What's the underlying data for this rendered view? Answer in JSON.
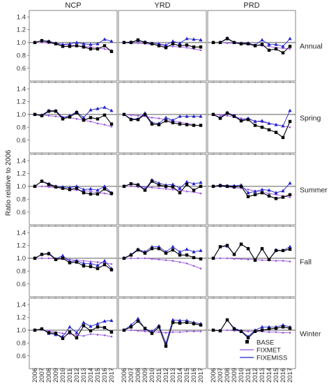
{
  "chart_data": {
    "type": "line",
    "ylabel": "Ratio relative to 2006",
    "x": [
      "2006",
      "2007",
      "2008",
      "2009",
      "2010",
      "2011",
      "2012",
      "2013",
      "2014",
      "2015",
      "2016",
      "2017"
    ],
    "ylim": [
      0.4,
      1.5
    ],
    "yticks": [
      "0.6",
      "0.8",
      "1.0",
      "1.2",
      "1.4"
    ],
    "columns": [
      "NCP",
      "YRD",
      "PRD"
    ],
    "rows": [
      "Annual",
      "Spring",
      "Summer",
      "Fall",
      "Winter"
    ],
    "legend": [
      "BASE",
      "FIXMET",
      "FIXEMISS"
    ],
    "legend_position": "bottom-right",
    "colors": {
      "BASE": "#000000",
      "FIXMET": "#9955dd",
      "FIXEMISS": "#2222cc",
      "reference": "#444444"
    },
    "panels": [
      {
        "row": "Annual",
        "column": "NCP",
        "series": [
          {
            "name": "BASE",
            "values": [
              1.0,
              1.03,
              1.01,
              0.98,
              0.94,
              0.94,
              0.95,
              0.93,
              0.9,
              0.9,
              0.95,
              0.86
            ]
          },
          {
            "name": "FIXMET",
            "values": [
              1.0,
              1.0,
              0.99,
              0.98,
              0.97,
              0.96,
              0.95,
              0.94,
              0.93,
              0.92,
              0.9,
              0.88
            ]
          },
          {
            "name": "FIXEMISS",
            "values": [
              1.0,
              1.03,
              1.02,
              0.99,
              0.97,
              0.98,
              1.0,
              0.98,
              0.97,
              0.98,
              1.05,
              1.02
            ]
          }
        ]
      },
      {
        "row": "Annual",
        "column": "YRD",
        "series": [
          {
            "name": "BASE",
            "values": [
              1.0,
              1.0,
              1.04,
              1.0,
              0.98,
              0.95,
              0.92,
              0.98,
              0.95,
              0.96,
              0.93,
              0.93
            ]
          },
          {
            "name": "FIXMET",
            "values": [
              1.0,
              0.99,
              0.99,
              0.98,
              0.97,
              0.96,
              0.95,
              0.94,
              0.93,
              0.92,
              0.9,
              0.88
            ]
          },
          {
            "name": "FIXEMISS",
            "values": [
              1.0,
              1.01,
              1.03,
              1.01,
              0.99,
              0.98,
              0.96,
              1.02,
              0.99,
              1.06,
              1.05,
              1.04
            ]
          }
        ]
      },
      {
        "row": "Annual",
        "column": "PRD",
        "series": [
          {
            "name": "BASE",
            "values": [
              1.0,
              1.0,
              1.06,
              1.0,
              0.98,
              0.98,
              0.95,
              0.97,
              0.88,
              0.9,
              0.84,
              0.94
            ]
          },
          {
            "name": "FIXMET",
            "values": [
              1.0,
              1.0,
              0.99,
              0.99,
              0.98,
              0.97,
              0.96,
              0.95,
              0.94,
              0.92,
              0.91,
              0.9
            ]
          },
          {
            "name": "FIXEMISS",
            "values": [
              1.0,
              1.0,
              1.07,
              1.0,
              0.99,
              0.99,
              0.96,
              1.04,
              0.97,
              0.97,
              0.94,
              1.06
            ]
          }
        ]
      },
      {
        "row": "Spring",
        "column": "NCP",
        "series": [
          {
            "name": "BASE",
            "values": [
              1.0,
              0.98,
              1.05,
              1.05,
              0.93,
              0.96,
              1.03,
              0.91,
              0.95,
              0.93,
              0.99,
              0.85
            ]
          },
          {
            "name": "FIXMET",
            "values": [
              1.0,
              0.99,
              0.98,
              0.97,
              0.96,
              0.95,
              0.93,
              0.91,
              0.89,
              0.86,
              0.84,
              0.81
            ]
          },
          {
            "name": "FIXEMISS",
            "values": [
              1.0,
              0.99,
              1.06,
              1.06,
              0.95,
              0.98,
              1.04,
              0.95,
              1.07,
              1.09,
              1.11,
              1.06
            ]
          }
        ]
      },
      {
        "row": "Spring",
        "column": "YRD",
        "series": [
          {
            "name": "BASE",
            "values": [
              1.0,
              0.92,
              0.92,
              1.0,
              0.85,
              0.84,
              0.9,
              0.87,
              0.85,
              0.84,
              0.83,
              0.83
            ]
          },
          {
            "name": "FIXMET",
            "values": [
              1.0,
              0.99,
              0.98,
              0.97,
              0.95,
              0.94,
              0.92,
              0.9,
              0.88,
              0.86,
              0.84,
              0.82
            ]
          },
          {
            "name": "FIXEMISS",
            "values": [
              1.0,
              0.93,
              0.93,
              1.02,
              0.87,
              0.86,
              0.95,
              0.91,
              0.97,
              0.97,
              0.97,
              0.97
            ]
          }
        ]
      },
      {
        "row": "Spring",
        "column": "PRD",
        "series": [
          {
            "name": "BASE",
            "values": [
              1.0,
              0.94,
              1.02,
              0.97,
              0.9,
              0.92,
              0.83,
              0.8,
              0.76,
              0.72,
              0.64,
              0.89
            ]
          },
          {
            "name": "FIXMET",
            "values": [
              1.0,
              0.99,
              0.98,
              0.96,
              0.94,
              0.92,
              0.9,
              0.88,
              0.86,
              0.84,
              0.82,
              0.8
            ]
          },
          {
            "name": "FIXEMISS",
            "values": [
              1.0,
              0.95,
              1.03,
              0.98,
              0.91,
              0.94,
              0.89,
              0.9,
              0.86,
              0.84,
              0.82,
              1.06
            ]
          }
        ]
      },
      {
        "row": "Summer",
        "column": "NCP",
        "series": [
          {
            "name": "BASE",
            "values": [
              1.0,
              1.08,
              1.03,
              0.99,
              0.97,
              0.95,
              0.97,
              0.9,
              0.88,
              0.88,
              0.96,
              0.89
            ]
          },
          {
            "name": "FIXMET",
            "values": [
              1.0,
              1.0,
              0.99,
              0.98,
              0.97,
              0.95,
              0.94,
              0.93,
              0.92,
              0.9,
              0.89,
              0.87
            ]
          },
          {
            "name": "FIXEMISS",
            "values": [
              1.0,
              1.08,
              1.04,
              1.0,
              0.99,
              0.98,
              1.0,
              0.95,
              0.96,
              0.94,
              1.0,
              0.9
            ]
          }
        ]
      },
      {
        "row": "Summer",
        "column": "YRD",
        "series": [
          {
            "name": "BASE",
            "values": [
              1.0,
              1.04,
              1.02,
              0.94,
              1.08,
              1.02,
              1.0,
              0.99,
              0.9,
              1.03,
              0.94,
              1.0
            ]
          },
          {
            "name": "FIXMET",
            "values": [
              1.0,
              1.0,
              0.99,
              0.99,
              0.98,
              0.97,
              0.96,
              0.95,
              0.94,
              0.92,
              0.91,
              0.89
            ]
          },
          {
            "name": "FIXEMISS",
            "values": [
              1.0,
              1.04,
              1.03,
              0.95,
              1.1,
              1.05,
              1.02,
              1.03,
              0.97,
              1.07,
              1.04,
              1.06
            ]
          }
        ]
      },
      {
        "row": "Summer",
        "column": "PRD",
        "series": [
          {
            "name": "BASE",
            "values": [
              1.0,
              1.01,
              1.0,
              0.99,
              1.0,
              0.84,
              0.87,
              0.9,
              0.85,
              0.81,
              0.83,
              0.87
            ]
          },
          {
            "name": "FIXMET",
            "values": [
              1.0,
              1.0,
              0.99,
              0.98,
              0.97,
              0.95,
              0.93,
              0.91,
              0.89,
              0.87,
              0.85,
              0.83
            ]
          },
          {
            "name": "FIXEMISS",
            "values": [
              1.0,
              1.02,
              1.01,
              1.01,
              1.02,
              0.9,
              0.92,
              0.95,
              0.94,
              0.9,
              0.93,
              1.05
            ]
          }
        ]
      },
      {
        "row": "Fall",
        "column": "NCP",
        "series": [
          {
            "name": "BASE",
            "values": [
              1.0,
              1.06,
              1.07,
              0.98,
              1.0,
              0.93,
              0.94,
              0.88,
              0.87,
              0.84,
              0.9,
              0.82
            ]
          },
          {
            "name": "FIXMET",
            "values": [
              1.0,
              1.0,
              1.0,
              0.99,
              0.99,
              0.98,
              0.97,
              0.96,
              0.95,
              0.94,
              0.93,
              0.91
            ]
          },
          {
            "name": "FIXEMISS",
            "values": [
              1.0,
              1.06,
              1.08,
              0.99,
              1.04,
              0.95,
              0.96,
              0.92,
              0.92,
              0.89,
              0.96,
              0.84
            ]
          }
        ]
      },
      {
        "row": "Fall",
        "column": "YRD",
        "series": [
          {
            "name": "BASE",
            "values": [
              1.0,
              1.05,
              1.13,
              1.08,
              1.15,
              1.15,
              1.08,
              1.13,
              1.05,
              1.05,
              1.01,
              0.99
            ]
          },
          {
            "name": "FIXMET",
            "values": [
              1.0,
              1.0,
              1.0,
              1.0,
              0.99,
              0.98,
              0.97,
              0.96,
              0.94,
              0.92,
              0.88,
              0.84
            ]
          },
          {
            "name": "FIXEMISS",
            "values": [
              1.0,
              1.06,
              1.14,
              1.1,
              1.18,
              1.18,
              1.1,
              1.18,
              1.1,
              1.14,
              1.1,
              1.12
            ]
          }
        ]
      },
      {
        "row": "Fall",
        "column": "PRD",
        "series": [
          {
            "name": "BASE",
            "values": [
              1.0,
              1.18,
              1.2,
              1.06,
              1.22,
              1.15,
              0.97,
              1.15,
              0.98,
              1.12,
              1.12,
              1.14
            ]
          },
          {
            "name": "FIXMET",
            "values": [
              1.0,
              1.0,
              1.0,
              0.99,
              0.99,
              0.98,
              0.98,
              0.97,
              0.97,
              0.96,
              0.96,
              0.95
            ]
          },
          {
            "name": "FIXEMISS",
            "values": [
              1.0,
              1.18,
              1.19,
              1.06,
              1.22,
              1.15,
              0.97,
              1.15,
              0.98,
              1.13,
              1.12,
              1.18
            ]
          }
        ]
      },
      {
        "row": "Winter",
        "column": "NCP",
        "series": [
          {
            "name": "BASE",
            "values": [
              1.0,
              1.02,
              0.96,
              0.95,
              0.87,
              0.97,
              0.88,
              1.07,
              0.99,
              1.05,
              1.04,
              0.97
            ]
          },
          {
            "name": "FIXMET",
            "values": [
              1.0,
              1.01,
              0.99,
              0.97,
              0.95,
              0.94,
              0.92,
              0.91,
              0.94,
              0.93,
              0.92,
              0.9
            ]
          },
          {
            "name": "FIXEMISS",
            "values": [
              1.0,
              1.02,
              0.95,
              0.93,
              0.9,
              1.05,
              0.96,
              1.12,
              1.06,
              1.1,
              1.14,
              1.15
            ]
          }
        ]
      },
      {
        "row": "Winter",
        "column": "YRD",
        "series": [
          {
            "name": "BASE",
            "values": [
              1.0,
              1.05,
              1.14,
              1.03,
              0.95,
              1.05,
              0.75,
              1.12,
              1.11,
              1.12,
              1.1,
              1.08
            ]
          },
          {
            "name": "FIXMET",
            "values": [
              1.0,
              1.0,
              0.99,
              0.98,
              0.97,
              0.97,
              0.96,
              0.97,
              0.97,
              0.98,
              0.98,
              0.98
            ]
          },
          {
            "name": "FIXEMISS",
            "values": [
              1.0,
              1.08,
              1.18,
              1.02,
              0.98,
              1.07,
              0.8,
              1.16,
              1.15,
              1.15,
              1.12,
              1.1
            ]
          }
        ]
      },
      {
        "row": "Winter",
        "column": "PRD",
        "series": [
          {
            "name": "BASE",
            "values": [
              1.0,
              0.99,
              1.16,
              1.02,
              0.98,
              0.88,
              0.98,
              1.0,
              1.02,
              1.03,
              1.05,
              1.03
            ]
          },
          {
            "name": "FIXMET",
            "values": [
              1.0,
              1.0,
              1.0,
              0.99,
              0.99,
              0.98,
              0.98,
              0.98,
              0.97,
              0.97,
              0.96,
              0.96
            ]
          },
          {
            "name": "FIXEMISS",
            "values": [
              1.0,
              0.99,
              1.16,
              1.03,
              0.99,
              0.9,
              1.0,
              1.05,
              1.05,
              1.05,
              1.08,
              1.05
            ]
          }
        ]
      }
    ]
  }
}
